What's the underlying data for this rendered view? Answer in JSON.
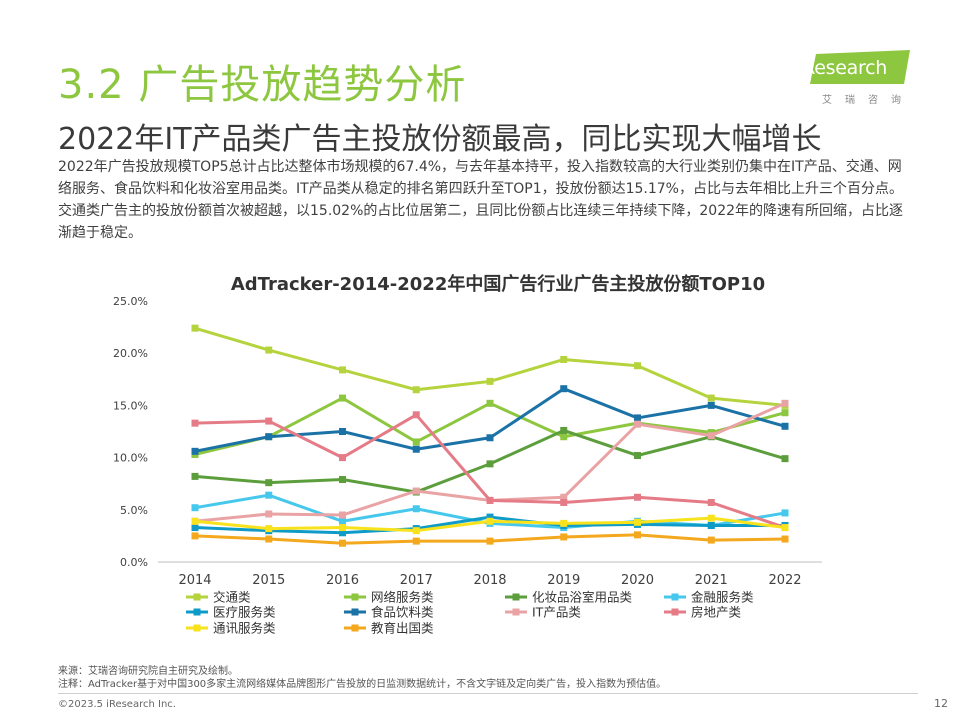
{
  "section_title": "3.2 广告投放趋势分析",
  "headline": "2022年IT产品类广告主投放份额最高，同比实现大幅增长",
  "body": "2022年广告投放规模TOP5总计占比达整体市场规模的67.4%，与去年基本持平，投入指数较高的大行业类别仍集中在IT产品、交通、网络服务、食品饮料和化妆浴室用品类。IT产品类从稳定的排名第四跃升至TOP1，投放份额达15.17%，占比与去年相比上升三个百分点。交通类广告主的投放份额首次被超越，以15.02%的占比位居第二，且同比份额占比连续三年持续下降，2022年的降速有所回缩，占比逐渐趋于稳定。",
  "logo": {
    "brand": "iResearch",
    "brand_i": "i",
    "brand_rest": "Research",
    "cn": "艾瑞咨询"
  },
  "chart_data": {
    "type": "line",
    "title": "AdTracker-2014-2022年中国广告行业广告主投放份额TOP10",
    "x": [
      "2014",
      "2015",
      "2016",
      "2017",
      "2018",
      "2019",
      "2020",
      "2021",
      "2022"
    ],
    "ylim": [
      0,
      25
    ],
    "yticks": [
      "0.0%",
      "5.0%",
      "10.0%",
      "15.0%",
      "20.0%",
      "25.0%"
    ],
    "ytick_values": [
      0,
      5,
      10,
      15,
      20,
      25
    ],
    "legend_position": "bottom",
    "grid": false,
    "series": [
      {
        "name": "交通类",
        "color": "#b5d33d",
        "values": [
          22.4,
          20.3,
          18.4,
          16.5,
          17.3,
          19.4,
          18.8,
          15.7,
          15.0
        ]
      },
      {
        "name": "网络服务类",
        "color": "#8dc63f",
        "values": [
          10.3,
          12.0,
          15.7,
          11.5,
          15.2,
          12.0,
          13.3,
          12.4,
          14.3
        ]
      },
      {
        "name": "化妆品浴室用品类",
        "color": "#5c9e3c",
        "values": [
          8.2,
          7.6,
          7.9,
          6.7,
          9.4,
          12.6,
          10.2,
          12.0,
          9.9
        ]
      },
      {
        "name": "金融服务类",
        "color": "#45c8ec",
        "values": [
          5.2,
          6.4,
          3.9,
          5.1,
          3.7,
          3.3,
          3.9,
          3.5,
          4.7
        ]
      },
      {
        "name": "医疗服务类",
        "color": "#0f9bc7",
        "values": [
          3.3,
          3.0,
          2.8,
          3.2,
          4.3,
          3.5,
          3.6,
          3.5,
          3.5
        ]
      },
      {
        "name": "食品饮料类",
        "color": "#1b72a6",
        "values": [
          10.6,
          12.0,
          12.5,
          10.8,
          11.9,
          16.6,
          13.8,
          15.0,
          13.0
        ]
      },
      {
        "name": "IT产品类",
        "color": "#eaa3a5",
        "values": [
          3.9,
          4.6,
          4.5,
          6.8,
          5.9,
          6.2,
          13.2,
          12.1,
          15.2
        ]
      },
      {
        "name": "房地产类",
        "color": "#e57b86",
        "values": [
          13.3,
          13.5,
          10.0,
          14.1,
          5.9,
          5.7,
          6.2,
          5.7,
          3.3
        ]
      },
      {
        "name": "通讯服务类",
        "color": "#f7e21c",
        "values": [
          3.9,
          3.2,
          3.3,
          3.0,
          3.9,
          3.7,
          3.8,
          4.2,
          3.3
        ]
      },
      {
        "name": "教育出国类",
        "color": "#f4a81d",
        "values": [
          2.5,
          2.2,
          1.8,
          2.0,
          2.0,
          2.4,
          2.6,
          2.1,
          2.2
        ]
      }
    ]
  },
  "footnotes": {
    "source": "来源：艾瑞咨询研究院自主研究及绘制。",
    "note": "注释：AdTracker基于对中国300多家主流网络媒体品牌图形广告投放的日监测数据统计，不含文字链及定向类广告，投入指数为预估值。"
  },
  "copyright": "©2023.5 iResearch Inc.",
  "page_number": "12"
}
